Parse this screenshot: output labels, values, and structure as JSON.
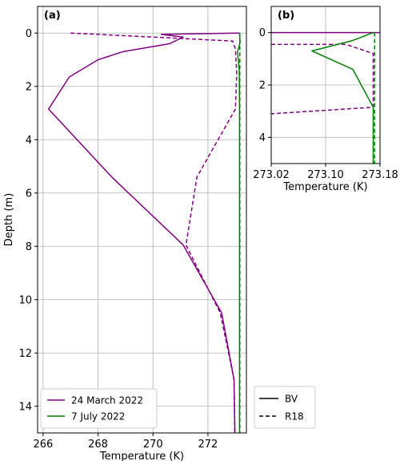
{
  "colors": {
    "purple": "#800080",
    "green": "#008000",
    "grid": "#b0b0b0",
    "axis": "#000000"
  },
  "chart_data": [
    {
      "type": "line",
      "panel_label": "(a)",
      "xlabel": "Temperature (K)",
      "ylabel": "Depth (m)",
      "xlim": [
        265.8,
        273.4
      ],
      "ylim": [
        15,
        -1
      ],
      "xticks": [
        266,
        268,
        270,
        272
      ],
      "yticks": [
        0,
        2,
        4,
        6,
        8,
        10,
        12,
        14
      ],
      "grid": true,
      "legend": {
        "placement": "bottom-left",
        "entries": [
          {
            "label": "24 March 2022",
            "color": "purple"
          },
          {
            "label": "7 July 2022",
            "color": "green"
          }
        ]
      },
      "series": [
        {
          "color": "purple",
          "style": "solid",
          "points": [
            [
              273.15,
              0.0
            ],
            [
              270.3,
              0.05
            ],
            [
              271.1,
              0.15
            ],
            [
              270.6,
              0.4
            ],
            [
              268.9,
              0.7
            ],
            [
              268.0,
              1.0
            ],
            [
              266.95,
              1.65
            ],
            [
              266.2,
              2.85
            ],
            [
              268.5,
              5.4
            ],
            [
              271.1,
              7.95
            ],
            [
              272.5,
              10.5
            ],
            [
              272.95,
              13.0
            ],
            [
              272.98,
              15.0
            ]
          ]
        },
        {
          "color": "purple",
          "style": "dashed",
          "points": [
            [
              267.0,
              0.0
            ],
            [
              271.0,
              0.2
            ],
            [
              272.9,
              0.3
            ],
            [
              273.0,
              0.6
            ],
            [
              273.05,
              1.5
            ],
            [
              273.0,
              2.85
            ],
            [
              271.6,
              5.4
            ],
            [
              271.2,
              7.95
            ],
            [
              272.45,
              10.5
            ],
            [
              272.95,
              13.0
            ],
            [
              272.98,
              15.0
            ]
          ]
        },
        {
          "color": "green",
          "style": "solid",
          "points": [
            [
              273.15,
              0.0
            ],
            [
              273.17,
              0.35
            ],
            [
              273.08,
              0.7
            ],
            [
              273.14,
              1.4
            ],
            [
              273.15,
              2.85
            ],
            [
              273.15,
              15.0
            ]
          ]
        },
        {
          "color": "green",
          "style": "dashed",
          "points": [
            [
              273.16,
              0.0
            ],
            [
              273.16,
              0.8
            ],
            [
              273.16,
              2.85
            ],
            [
              273.16,
              15.0
            ]
          ]
        }
      ]
    },
    {
      "type": "line",
      "panel_label": "(b)",
      "xlabel": "Temperature (K)",
      "ylabel": "",
      "xlim": [
        273.02,
        273.18
      ],
      "ylim": [
        5,
        -1
      ],
      "xticks": [
        273.02,
        273.1,
        273.18
      ],
      "xtick_labels": [
        "273.02",
        "273.10",
        "273.18"
      ],
      "yticks": [
        0,
        2,
        4
      ],
      "grid": true,
      "series": [
        {
          "color": "purple",
          "style": "solid",
          "points": [
            [
              273.02,
              0.0
            ],
            [
              273.18,
              0.0
            ]
          ]
        },
        {
          "color": "purple",
          "style": "dashed",
          "points": [
            [
              273.02,
              0.45
            ],
            [
              273.13,
              0.45
            ],
            [
              273.17,
              0.8
            ],
            [
              273.17,
              2.85
            ],
            [
              273.02,
              3.1
            ]
          ]
        },
        {
          "color": "green",
          "style": "solid",
          "points": [
            [
              273.17,
              0.0
            ],
            [
              273.14,
              0.3
            ],
            [
              273.08,
              0.7
            ],
            [
              273.14,
              1.4
            ],
            [
              273.17,
              2.85
            ],
            [
              273.17,
              5.0
            ]
          ]
        },
        {
          "color": "green",
          "style": "dashed",
          "points": [
            [
              273.172,
              0.0
            ],
            [
              273.172,
              0.8
            ],
            [
              273.172,
              2.85
            ],
            [
              273.172,
              5.0
            ]
          ]
        }
      ]
    }
  ],
  "style_legend": {
    "entries": [
      {
        "label": "BV",
        "style": "solid"
      },
      {
        "label": "R18",
        "style": "dashed"
      }
    ]
  }
}
